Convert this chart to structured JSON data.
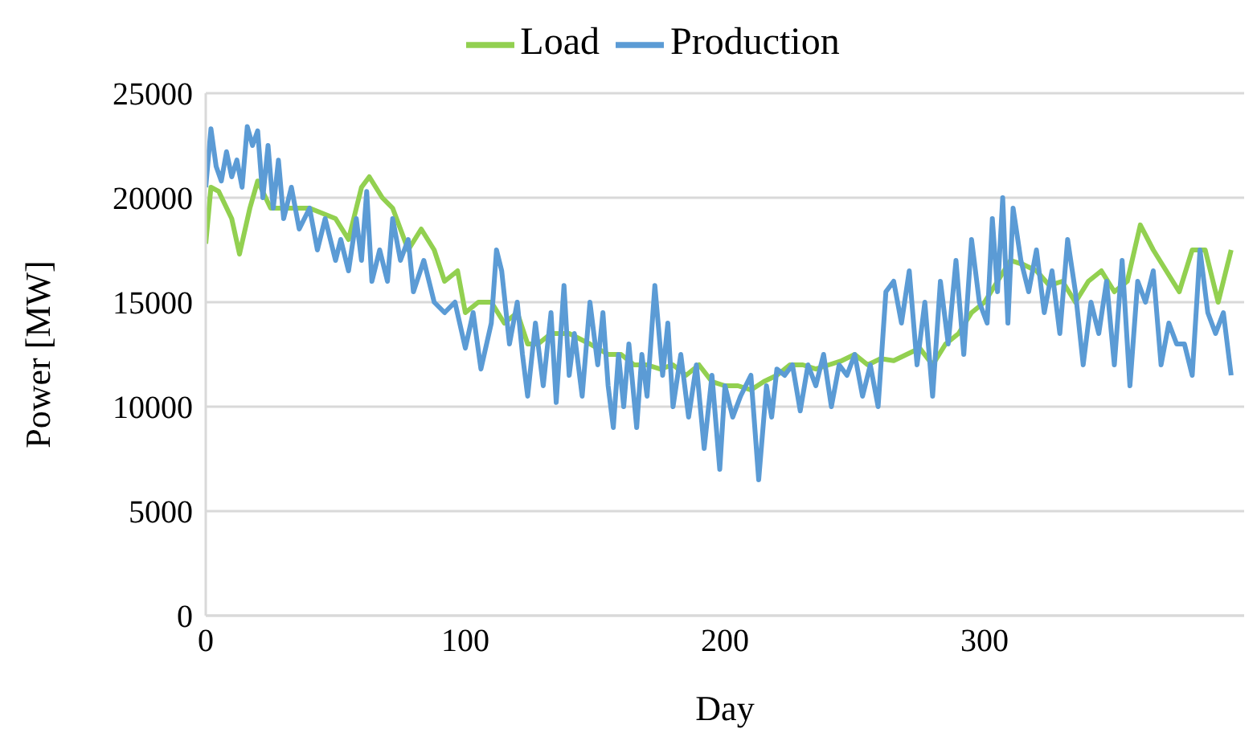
{
  "chart_data": {
    "type": "line",
    "xlabel": "Day",
    "ylabel": "Power [MW]",
    "xlim": [
      0,
      400
    ],
    "xticks": [
      0,
      100,
      200,
      300
    ],
    "ylim": [
      0,
      25000
    ],
    "yticks": [
      0,
      5000,
      10000,
      15000,
      20000,
      25000
    ],
    "grid": "y",
    "legend": "top",
    "marker": "none",
    "line_style": "solid",
    "series": [
      {
        "name": "Load",
        "color": "#92d050",
        "x": [
          0,
          2,
          5,
          10,
          13,
          17,
          20,
          25,
          30,
          40,
          50,
          55,
          60,
          63,
          68,
          72,
          78,
          83,
          88,
          92,
          97,
          100,
          105,
          110,
          115,
          120,
          124,
          128,
          133,
          140,
          148,
          155,
          160,
          165,
          170,
          175,
          180,
          185,
          190,
          195,
          200,
          205,
          210,
          215,
          220,
          225,
          230,
          235,
          240,
          245,
          250,
          255,
          260,
          265,
          270,
          275,
          280,
          285,
          290,
          295,
          300,
          305,
          310,
          315,
          320,
          325,
          330,
          335,
          340,
          345,
          350,
          355,
          360,
          365,
          370,
          375,
          380,
          385,
          390,
          395
        ],
        "values": [
          17800,
          20500,
          20300,
          19000,
          17300,
          19500,
          20800,
          19500,
          19500,
          19500,
          19000,
          18000,
          20500,
          21000,
          20000,
          19500,
          17500,
          18500,
          17500,
          16000,
          16500,
          14500,
          15000,
          15000,
          14000,
          14500,
          13000,
          13000,
          13500,
          13500,
          13000,
          12500,
          12500,
          12000,
          12000,
          11800,
          12000,
          11500,
          12000,
          11200,
          11000,
          11000,
          10800,
          11200,
          11500,
          12000,
          12000,
          11800,
          12000,
          12200,
          12500,
          12000,
          12300,
          12200,
          12500,
          12800,
          12000,
          13000,
          13500,
          14500,
          15000,
          16000,
          17000,
          16800,
          16500,
          15800,
          16000,
          15000,
          16000,
          16500,
          15500,
          16000,
          18700,
          17500,
          16500,
          15500,
          17500,
          17500,
          15000,
          17500
        ]
      },
      {
        "name": "Production",
        "color": "#5b9bd5",
        "x": [
          0,
          2,
          4,
          6,
          8,
          10,
          12,
          14,
          16,
          18,
          20,
          22,
          24,
          26,
          28,
          30,
          33,
          36,
          40,
          43,
          46,
          50,
          52,
          55,
          58,
          60,
          62,
          64,
          67,
          70,
          72,
          75,
          78,
          80,
          84,
          88,
          92,
          96,
          100,
          103,
          106,
          110,
          112,
          114,
          117,
          120,
          122,
          124,
          127,
          130,
          133,
          135,
          138,
          140,
          142,
          145,
          148,
          151,
          153,
          155,
          157,
          159,
          161,
          163,
          166,
          168,
          170,
          173,
          176,
          178,
          180,
          183,
          186,
          189,
          192,
          195,
          198,
          200,
          203,
          206,
          210,
          213,
          216,
          218,
          220,
          223,
          226,
          229,
          232,
          235,
          238,
          241,
          244,
          247,
          250,
          253,
          256,
          259,
          262,
          265,
          268,
          271,
          274,
          277,
          280,
          283,
          286,
          289,
          292,
          295,
          298,
          301,
          303,
          305,
          307,
          309,
          311,
          314,
          317,
          320,
          323,
          326,
          329,
          332,
          335,
          338,
          341,
          344,
          347,
          350,
          353,
          356,
          359,
          362,
          365,
          368,
          371,
          374,
          377,
          380,
          383,
          386,
          389,
          392,
          395
        ],
        "values": [
          20500,
          23300,
          21500,
          20800,
          22200,
          21000,
          21800,
          20500,
          23400,
          22500,
          23200,
          20000,
          22500,
          19500,
          21800,
          19000,
          20500,
          18500,
          19500,
          17500,
          19000,
          17000,
          18000,
          16500,
          19000,
          17000,
          20300,
          16000,
          17500,
          16000,
          19000,
          17000,
          18000,
          15500,
          17000,
          15000,
          14500,
          15000,
          12800,
          14500,
          11800,
          14000,
          17500,
          16500,
          13000,
          15000,
          12500,
          10500,
          14000,
          11000,
          14500,
          10200,
          15800,
          11500,
          13500,
          10500,
          15000,
          12000,
          14500,
          11000,
          9000,
          12500,
          10000,
          13000,
          9000,
          12500,
          10500,
          15800,
          11500,
          14000,
          10000,
          12500,
          9500,
          12000,
          8000,
          11500,
          7000,
          11000,
          9500,
          10500,
          11500,
          6500,
          11000,
          9500,
          11800,
          11500,
          12000,
          9800,
          12000,
          11000,
          12500,
          10000,
          12000,
          11500,
          12500,
          10500,
          12000,
          10000,
          15500,
          16000,
          14000,
          16500,
          12000,
          15000,
          10500,
          16000,
          13000,
          17000,
          12500,
          18000,
          15000,
          14000,
          19000,
          15500,
          20000,
          14000,
          19500,
          17000,
          15500,
          17500,
          14500,
          16500,
          13500,
          18000,
          15500,
          12000,
          15000,
          13500,
          16000,
          12000,
          17000,
          11000,
          16000,
          15000,
          16500,
          12000,
          14000,
          13000,
          13000,
          11500,
          17500,
          14500,
          13500,
          14500,
          11500
        ]
      }
    ]
  }
}
